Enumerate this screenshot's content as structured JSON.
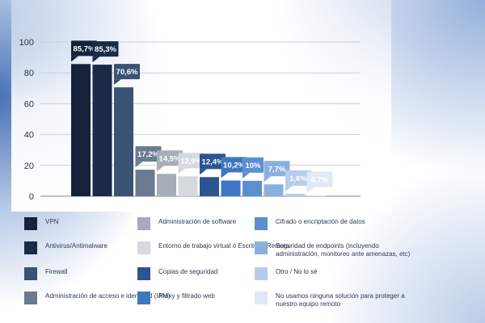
{
  "chart_data": {
    "type": "bar",
    "ylim": [
      0,
      100
    ],
    "yticks": [
      "0",
      "20",
      "40",
      "60",
      "80",
      "100"
    ],
    "categories": [
      "VPN",
      "Antivirus/Antimalware",
      "Firewall",
      "Administración de acceso e identidad (IAM)",
      "Administración de software",
      "Entorno de trabajo virtual o Escritorio Remoto",
      "Copias de seguridad",
      "Proxy y filtrado web",
      "Cifrado o encriptación de datos",
      "Seguridad de endpoints (incluyendo administración, monitoreo ante amenazas, etc)",
      "Otro / No lo sé",
      "No usamos ninguna solución para proteger a nuestro equipo remoto"
    ],
    "values": [
      85.7,
      85.3,
      70.6,
      17.2,
      14.5,
      12.9,
      12.4,
      10.2,
      10,
      7.7,
      1.6,
      0.7
    ],
    "labels": [
      "85,7%",
      "85,3%",
      "70,6%",
      "17,2%",
      "14,5%",
      "12,9%",
      "12,4%",
      "10,2%",
      "10%",
      "7,7%",
      "1,6%",
      "0,7%"
    ],
    "colors": [
      "#15223a",
      "#1a2b48",
      "#3a5273",
      "#6a7a90",
      "#a6adb8",
      "#d6d9de",
      "#2b5490",
      "#3e76c2",
      "#5c8fd0",
      "#8cb0dd",
      "#b6cdea",
      "#e0e8f3"
    ],
    "legend_columns": [
      [
        0,
        1,
        2,
        3
      ],
      [
        4,
        5,
        6,
        7
      ],
      [
        8,
        9,
        10,
        11
      ]
    ]
  }
}
